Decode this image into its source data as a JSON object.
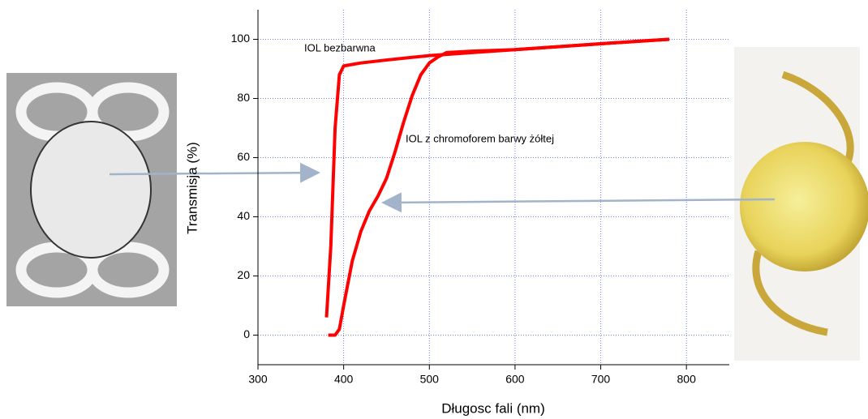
{
  "chart_data": {
    "type": "line",
    "x_label": "Długosc fali (nm)",
    "y_label": "Transmisja (%)",
    "xlim": [
      300,
      850
    ],
    "xticks": [
      300,
      400,
      500,
      600,
      700,
      800
    ],
    "ylim": [
      -10,
      110
    ],
    "yticks": [
      0,
      20,
      40,
      60,
      80,
      100
    ],
    "grid": true,
    "series": [
      {
        "name": "IOL bezbarwna",
        "color": "#ff0000",
        "x": [
          380,
          385,
          390,
          395,
          400,
          420,
          450,
          500,
          550,
          600,
          650,
          700,
          750,
          780
        ],
        "values": [
          6,
          30,
          70,
          88,
          91,
          92,
          93,
          94.5,
          95.5,
          96.5,
          97.5,
          98.5,
          99.5,
          100
        ]
      },
      {
        "name": "IOL z chromoforem barwy żółtej",
        "color": "#ff0000",
        "x": [
          382,
          390,
          395,
          400,
          410,
          420,
          430,
          440,
          450,
          460,
          470,
          480,
          490,
          500,
          510,
          520,
          550,
          600,
          650,
          700,
          780
        ],
        "values": [
          0,
          0,
          2,
          10,
          25,
          35,
          42,
          47,
          53,
          62,
          72,
          81,
          88,
          92,
          94,
          95.5,
          96,
          96.5,
          97.5,
          98.5,
          100
        ]
      }
    ]
  }
}
